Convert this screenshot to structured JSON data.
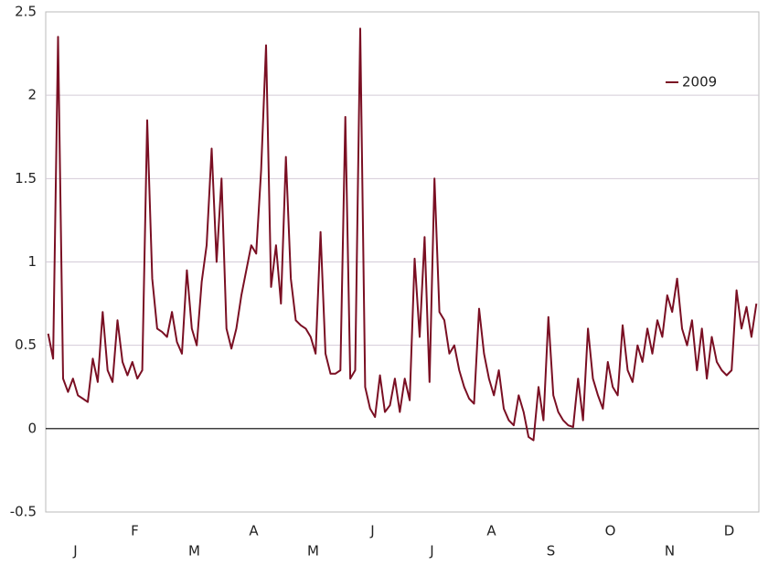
{
  "chart_data": {
    "type": "line",
    "categories": [
      "J",
      "F",
      "M",
      "A",
      "M",
      "J",
      "J",
      "A",
      "S",
      "O",
      "N",
      "D"
    ],
    "series": [
      {
        "name": "2009",
        "color": "#7a0f23",
        "values": [
          [
            0.57,
            0.42,
            2.35,
            0.3,
            0.22,
            0.3,
            0.2,
            0.18,
            0.16,
            0.42,
            0.28,
            0.7
          ],
          [
            0.35,
            0.28,
            0.65,
            0.4,
            0.32,
            0.4,
            0.3,
            0.35,
            1.85,
            0.9,
            0.6,
            0.58
          ],
          [
            0.55,
            0.7,
            0.52,
            0.45,
            0.95,
            0.6,
            0.5,
            0.88,
            1.1,
            1.68,
            1.0,
            1.5
          ],
          [
            0.6,
            0.48,
            0.6,
            0.8,
            0.95,
            1.1,
            1.05,
            1.55,
            2.3,
            0.85,
            1.1,
            0.75
          ],
          [
            1.63,
            0.9,
            0.65,
            0.62,
            0.6,
            0.55,
            0.45,
            1.18,
            0.45,
            0.33,
            0.33,
            0.35
          ],
          [
            1.87,
            0.3,
            0.35,
            2.4,
            0.25,
            0.12,
            0.07,
            0.32,
            0.1,
            0.14,
            0.3,
            0.1
          ],
          [
            0.3,
            0.17,
            1.02,
            0.55,
            1.15,
            0.28,
            1.5,
            0.7,
            0.65,
            0.45,
            0.5,
            0.35
          ],
          [
            0.25,
            0.18,
            0.15,
            0.72,
            0.45,
            0.3,
            0.2,
            0.35,
            0.12,
            0.05,
            0.02,
            0.2
          ],
          [
            0.1,
            -0.05,
            -0.07,
            0.25,
            0.05,
            0.67,
            0.2,
            0.1,
            0.05,
            0.02,
            0.01,
            0.3
          ],
          [
            0.05,
            0.6,
            0.3,
            0.2,
            0.12,
            0.4,
            0.25,
            0.2,
            0.62,
            0.35,
            0.28,
            0.5
          ],
          [
            0.4,
            0.6,
            0.45,
            0.65,
            0.55,
            0.8,
            0.7,
            0.9,
            0.6,
            0.5,
            0.65,
            0.35
          ],
          [
            0.6,
            0.3,
            0.55,
            0.4,
            0.35,
            0.32,
            0.35,
            0.83,
            0.6,
            0.73,
            0.55,
            0.75
          ]
        ]
      }
    ],
    "ylim": [
      -0.5,
      2.5
    ],
    "yticks": [
      -0.5,
      0,
      0.5,
      1,
      1.5,
      2,
      2.5
    ],
    "grid": true,
    "legend": "upper right"
  }
}
